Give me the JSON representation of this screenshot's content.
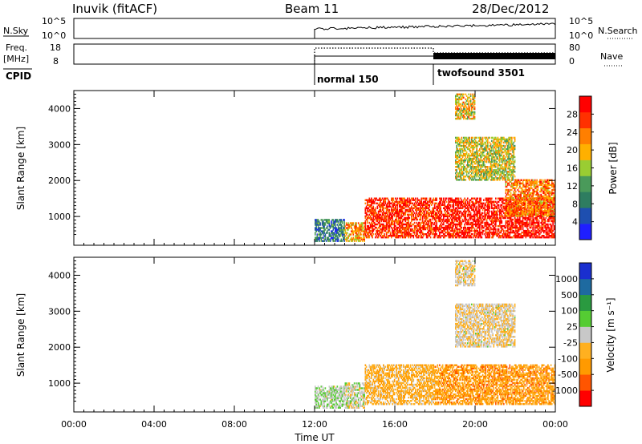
{
  "header": {
    "station": "Inuvik (fitACF)",
    "beam": "Beam 11",
    "date": "28/Dec/2012"
  },
  "params": {
    "nsky_label": "N.Sky",
    "nsky_ticks": [
      "10^5",
      "10^0"
    ],
    "nsearch_ticks": [
      "10^5",
      "10^0"
    ],
    "nsearch_label": "N.Search",
    "freq_label_line1": "Freq.",
    "freq_label_line2": "[MHz]",
    "freq_ticks": [
      "18",
      "8"
    ],
    "nave_ticks": [
      "80",
      "0"
    ],
    "nave_label": "Nave",
    "cpid_label": "CPID",
    "modes": [
      {
        "name": "normal 150",
        "start": "12:00"
      },
      {
        "name": "twofsound 3501",
        "start": "18:00"
      }
    ]
  },
  "time_axis": {
    "label": "Time UT",
    "ticks": [
      "00:00",
      "04:00",
      "08:00",
      "12:00",
      "16:00",
      "20:00",
      "00:00"
    ]
  },
  "colors": {
    "power": [
      "#1f1fff",
      "#1e4fb0",
      "#2e7d60",
      "#4a9a5a",
      "#9acd32",
      "#ffb000",
      "#ff7f00",
      "#ff3000",
      "#ff0000"
    ],
    "velocity": [
      "#ff0000",
      "#ff5500",
      "#ff9a00",
      "#ffb020",
      "#c8c8c8",
      "#55cc33",
      "#2a9a40",
      "#1e6aa0",
      "#1a2fcf"
    ]
  },
  "chart_data": [
    {
      "type": "heatmap",
      "name": "power",
      "xlabel": "",
      "ylabel": "Slant Range [km]",
      "yticks": [
        "1000",
        "2000",
        "3000",
        "4000"
      ],
      "ylim": [
        200,
        4500
      ],
      "xlim_hours": [
        0,
        24
      ],
      "colorbar": {
        "label": "Power [dB]",
        "ticks": [
          "4",
          "8",
          "12",
          "16",
          "20",
          "24",
          "28"
        ],
        "range": [
          0,
          30
        ]
      },
      "echo_regions": [
        {
          "t_start": 12.0,
          "t_end": 13.5,
          "r_low": 300,
          "r_high": 900,
          "level": 8
        },
        {
          "t_start": 13.5,
          "t_end": 14.5,
          "r_low": 300,
          "r_high": 800,
          "level": 20
        },
        {
          "t_start": 14.5,
          "t_end": 18.0,
          "r_low": 400,
          "r_high": 1500,
          "level": 26
        },
        {
          "t_start": 18.0,
          "t_end": 24.0,
          "r_low": 400,
          "r_high": 1500,
          "level": 28
        },
        {
          "t_start": 21.5,
          "t_end": 24.0,
          "r_low": 1000,
          "r_high": 2000,
          "level": 22
        },
        {
          "t_start": 19.0,
          "t_end": 22.0,
          "r_low": 2000,
          "r_high": 3200,
          "level": 16
        },
        {
          "t_start": 19.0,
          "t_end": 20.0,
          "r_low": 3700,
          "r_high": 4400,
          "level": 18
        }
      ]
    },
    {
      "type": "heatmap",
      "name": "velocity",
      "xlabel": "Time UT",
      "ylabel": "Slant Range [km]",
      "yticks": [
        "1000",
        "2000",
        "3000",
        "4000"
      ],
      "ylim": [
        200,
        4500
      ],
      "xlim_hours": [
        0,
        24
      ],
      "colorbar": {
        "label": "Velocity [m s⁻¹]",
        "ticks": [
          "-1000",
          "-500",
          "-100",
          "-25",
          "25",
          "100",
          "500",
          "1000"
        ],
        "range": [
          -1200,
          1200
        ]
      },
      "echo_regions": [
        {
          "t_start": 12.0,
          "t_end": 13.5,
          "r_low": 300,
          "r_high": 900,
          "level": 100
        },
        {
          "t_start": 13.5,
          "t_end": 14.5,
          "r_low": 300,
          "r_high": 1000,
          "level": 0
        },
        {
          "t_start": 14.5,
          "t_end": 18.0,
          "r_low": 400,
          "r_high": 1500,
          "level": -300
        },
        {
          "t_start": 18.0,
          "t_end": 24.0,
          "r_low": 400,
          "r_high": 1500,
          "level": -500
        },
        {
          "t_start": 19.0,
          "t_end": 22.0,
          "r_low": 2000,
          "r_high": 3200,
          "level": -100
        },
        {
          "t_start": 19.0,
          "t_end": 20.0,
          "r_low": 3700,
          "r_high": 4400,
          "level": -100
        }
      ]
    }
  ]
}
